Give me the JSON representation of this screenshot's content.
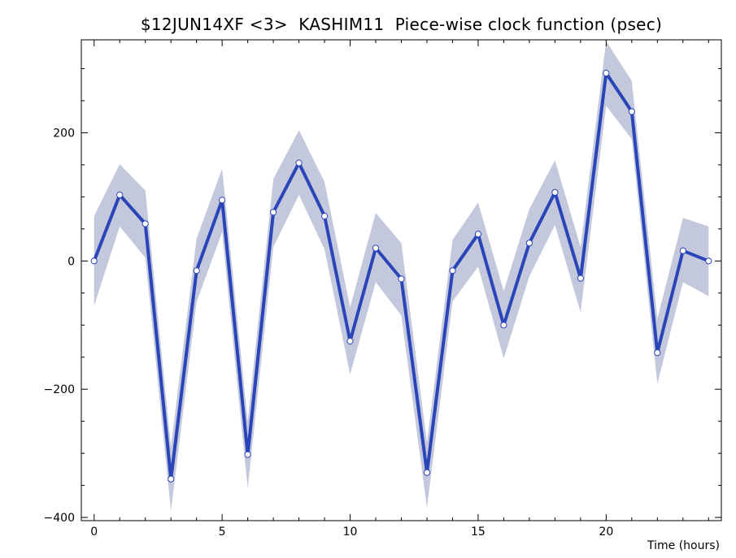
{
  "chart_data": {
    "type": "line",
    "title": "$12JUN14XF <3>  KASHIM11  Piece-wise clock function (psec)",
    "xlabel": "Time (hours)",
    "ylabel": "",
    "xlim": [
      -0.5,
      24.5
    ],
    "ylim": [
      -405,
      345
    ],
    "xticks": [
      0,
      5,
      10,
      15,
      20
    ],
    "yticks": [
      -400,
      -200,
      0,
      200
    ],
    "grid": false,
    "colors": {
      "line": "#2a45b8",
      "band": "#c3c8dc",
      "marker_fill": "#ffffff",
      "marker_edge": "#2a45b8"
    },
    "series": [
      {
        "x": [
          0,
          1,
          2,
          3,
          4,
          5,
          6,
          7,
          8,
          9,
          10,
          11,
          12,
          13,
          14,
          15,
          16,
          17,
          18,
          19,
          20,
          21,
          22,
          23,
          24
        ],
        "y": [
          0,
          103,
          58,
          -340,
          -15,
          95,
          -302,
          76,
          153,
          70,
          -125,
          20,
          -28,
          -330,
          -15,
          42,
          -100,
          28,
          107,
          -27,
          293,
          233,
          -143,
          16,
          0
        ],
        "upper": [
          70,
          151,
          110,
          -290,
          35,
          144,
          -250,
          128,
          204,
          123,
          -72,
          75,
          28,
          -283,
          33,
          91,
          -47,
          81,
          157,
          22,
          343,
          281,
          -90,
          67,
          54
        ],
        "lower": [
          -70,
          54,
          5,
          -390,
          -64,
          45,
          -355,
          22,
          103,
          18,
          -177,
          -33,
          -85,
          -385,
          -63,
          -9,
          -152,
          -24,
          56,
          -80,
          242,
          190,
          -192,
          -33,
          -55
        ]
      }
    ]
  }
}
